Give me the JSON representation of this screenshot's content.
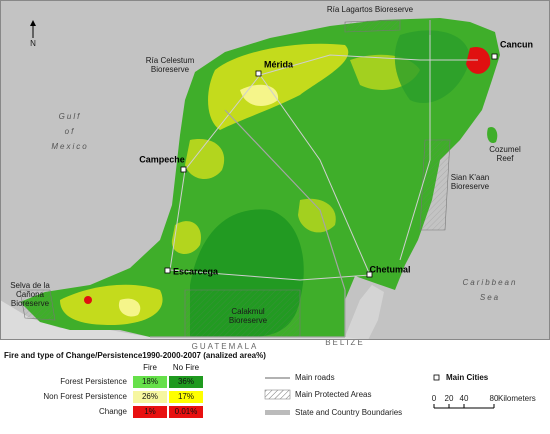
{
  "map": {
    "north": "N",
    "labels": {
      "ria_lagartos": "Ría Lagartos Bioreserve",
      "ria_celestum": [
        "Ría Celestum",
        "Bioreserve"
      ],
      "merida": "Mérida",
      "cancun": "Cancun",
      "gulf_of_mexico": [
        "Gulf",
        "of",
        "Mexico"
      ],
      "cozumel": [
        "Cozumel",
        "Reef"
      ],
      "campeche": "Campeche",
      "sian_kaan": [
        "Sian K'aan",
        "Bioreserve"
      ],
      "escarcega": "Escarcega",
      "selva": [
        "Selva de la",
        "Cañona",
        "Bioreserve"
      ],
      "calakmul": [
        "Calakmul",
        "Bioreserve"
      ],
      "chetumal": "Chetumal",
      "caribbean_sea": [
        "Caribbean",
        "Sea"
      ],
      "guatemala": "GUATEMALA",
      "belize": "BELIZE"
    }
  },
  "legend": {
    "title": "Fire and type of Change/Persistence1990-2000-2007 (analized area%)",
    "columns": [
      "Fire",
      "No Fire"
    ],
    "rows": [
      {
        "label": "Forest Persistence",
        "cells": [
          "18%",
          "36%"
        ]
      },
      {
        "label": "Non Forest Persistence",
        "cells": [
          "26%",
          "17%"
        ]
      },
      {
        "label": "Change",
        "cells": [
          "1%",
          "0.01%"
        ]
      }
    ],
    "symbols": [
      "Main roads",
      "Main Protected Areas",
      "State and Country Boundaries"
    ],
    "cities": "Main Cities",
    "scale_bar": {
      "ticks": [
        0,
        20,
        40,
        80
      ],
      "unit": "Kilometers"
    }
  }
}
